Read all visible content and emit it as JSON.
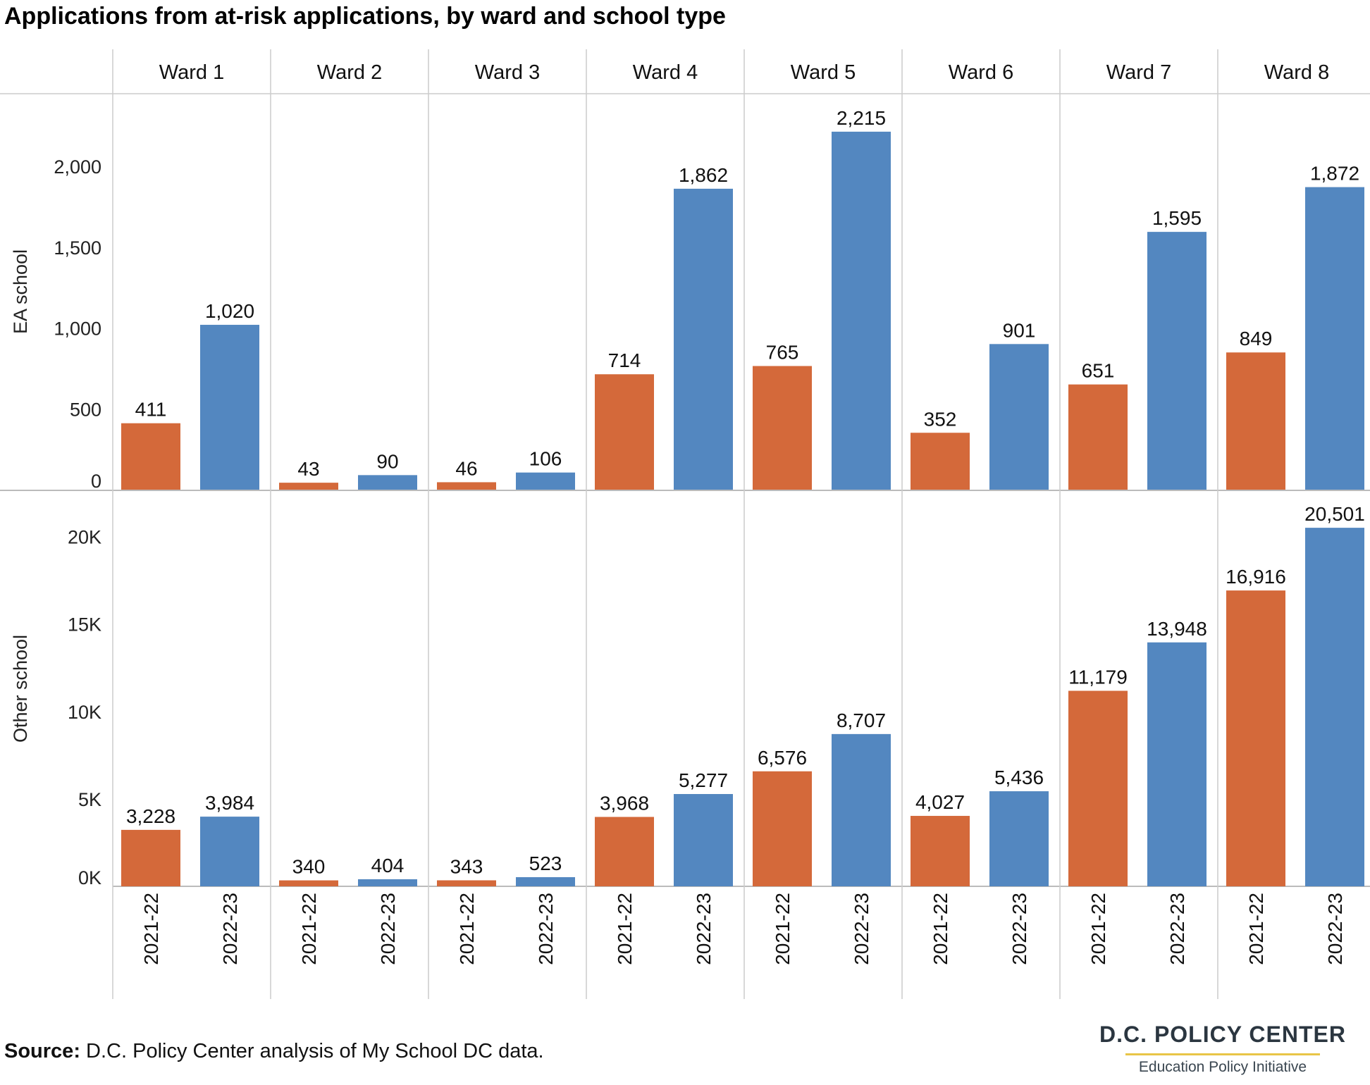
{
  "title": "Applications from at-risk applications, by ward and school type",
  "source_label": "Source:",
  "source_text": " D.C. Policy Center analysis of My School DC data.",
  "logo": {
    "main": "D.C. POLICY CENTER",
    "sub": "Education Policy Initiative"
  },
  "colors": {
    "s2021": "#d4693a",
    "s2022": "#5387c0",
    "grid": "#cccccc",
    "axis": "#bbbbbb"
  },
  "chart_data": {
    "type": "bar",
    "title": "Applications from at-risk applications, by ward and school type",
    "wards": [
      "Ward 1",
      "Ward 2",
      "Ward 3",
      "Ward 4",
      "Ward 5",
      "Ward 6",
      "Ward 7",
      "Ward 8"
    ],
    "years": [
      "2021-22",
      "2022-23"
    ],
    "panels": [
      {
        "name": "EA school",
        "ylim": [
          0,
          2450
        ],
        "yticks": [
          0,
          500,
          1000,
          1500,
          2000
        ],
        "ytick_labels": [
          "0",
          "500",
          "1,000",
          "1,500",
          "2,000"
        ],
        "series": [
          {
            "year": "2021-22",
            "values": [
              411,
              43,
              46,
              714,
              765,
              352,
              651,
              849
            ],
            "labels": [
              "411",
              "43",
              "46",
              "714",
              "765",
              "352",
              "651",
              "849"
            ]
          },
          {
            "year": "2022-23",
            "values": [
              1020,
              90,
              106,
              1862,
              2215,
              901,
              1595,
              1872
            ],
            "labels": [
              "1,020",
              "90",
              "106",
              "1,862",
              "2,215",
              "901",
              "1,595",
              "1,872"
            ]
          }
        ]
      },
      {
        "name": "Other school",
        "ylim": [
          0,
          22600
        ],
        "yticks": [
          0,
          5000,
          10000,
          15000,
          20000
        ],
        "ytick_labels": [
          "0K",
          "5K",
          "10K",
          "15K",
          "20K"
        ],
        "series": [
          {
            "year": "2021-22",
            "values": [
              3228,
              340,
              343,
              3968,
              6576,
              4027,
              11179,
              16916
            ],
            "labels": [
              "3,228",
              "340",
              "343",
              "3,968",
              "6,576",
              "4,027",
              "11,179",
              "16,916"
            ]
          },
          {
            "year": "2022-23",
            "values": [
              3984,
              404,
              523,
              5277,
              8707,
              5436,
              13948,
              20501
            ],
            "labels": [
              "3,984",
              "404",
              "523",
              "5,277",
              "8,707",
              "5,436",
              "13,948",
              "20,501"
            ]
          }
        ]
      }
    ]
  }
}
